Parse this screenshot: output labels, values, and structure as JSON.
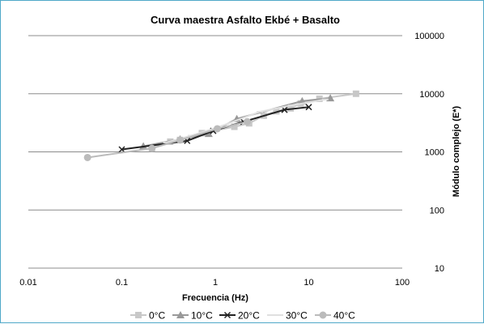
{
  "chart_data": {
    "type": "line",
    "title": "Curva maestra Asfalto Ekbé + Basalto",
    "xlabel": "Frecuencia (Hz)",
    "ylabel": "Módulo complejo (E*)",
    "x_scale": "log",
    "y_scale": "log",
    "xlim": [
      0.01,
      100
    ],
    "ylim": [
      10,
      100000
    ],
    "x_ticks": [
      "0.01",
      "0.1",
      "1",
      "10",
      "100"
    ],
    "y_ticks": [
      "10",
      "100",
      "1000",
      "10000",
      "100000"
    ],
    "y_axis_side": "right",
    "grid": "horizontal",
    "legend_position": "bottom",
    "series": [
      {
        "name": "0°C",
        "color": "#c8c8c8",
        "marker": "square",
        "x": [
          0.21,
          0.33,
          0.42,
          0.72,
          1.6,
          2.3,
          3.3,
          4.5,
          6.4,
          8.2,
          13,
          32
        ],
        "y": [
          1150,
          1500,
          1600,
          2100,
          2700,
          3100,
          4200,
          5000,
          5600,
          6800,
          8200,
          10000
        ]
      },
      {
        "name": "10°C",
        "color": "#999999",
        "marker": "triangle",
        "x": [
          0.17,
          0.42,
          0.85,
          1.7,
          8.5,
          17
        ],
        "y": [
          1250,
          1650,
          2050,
          3700,
          7500,
          8400
        ]
      },
      {
        "name": "20°C",
        "color": "#222222",
        "marker": "x",
        "x": [
          0.1,
          0.5,
          0.95,
          2.0,
          5.5,
          10
        ],
        "y": [
          1100,
          1550,
          2300,
          3300,
          5300,
          5900
        ]
      },
      {
        "name": "30°C",
        "color": "#e0e0e0",
        "marker": "dash",
        "x": [
          0.3,
          0.55,
          1.1,
          3.0,
          6.5,
          15
        ],
        "y": [
          1450,
          1900,
          2700,
          4900,
          6300,
          8000
        ]
      },
      {
        "name": "40°C",
        "color": "#bbbbbb",
        "marker": "circle",
        "x": [
          0.043,
          0.21,
          0.42,
          1.05,
          2.2
        ],
        "y": [
          800,
          1150,
          1600,
          2500,
          3300
        ]
      }
    ]
  }
}
